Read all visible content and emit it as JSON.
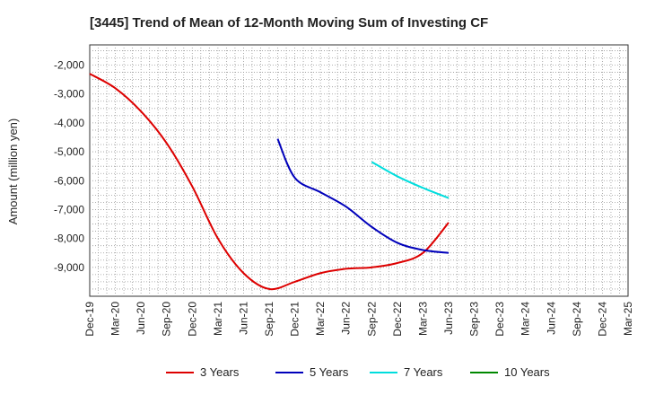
{
  "chart_data": {
    "type": "line",
    "title": "[3445]  Trend of Mean of 12-Month Moving Sum of Investing CF",
    "xlabel": "",
    "ylabel": "Amount (million yen)",
    "ylim": [
      -10000,
      -1300
    ],
    "yticks": [
      -9000,
      -8000,
      -7000,
      -6000,
      -5000,
      -4000,
      -3000,
      -2000
    ],
    "ytick_labels": [
      "-9,000",
      "-8,000",
      "-7,000",
      "-6,000",
      "-5,000",
      "-4,000",
      "-3,000",
      "-2,000"
    ],
    "xticks": [
      "Dec-19",
      "Mar-20",
      "Jun-20",
      "Sep-20",
      "Dec-20",
      "Mar-21",
      "Jun-21",
      "Sep-21",
      "Dec-21",
      "Mar-22",
      "Jun-22",
      "Sep-22",
      "Dec-22",
      "Mar-23",
      "Jun-23",
      "Sep-23",
      "Dec-23",
      "Mar-24",
      "Jun-24",
      "Sep-24",
      "Dec-24",
      "Mar-25"
    ],
    "grid": true,
    "legend_position": "bottom",
    "series": [
      {
        "name": "3 Years",
        "color": "#dd0000",
        "points": [
          [
            0,
            -2300
          ],
          [
            1,
            -2800
          ],
          [
            2,
            -3600
          ],
          [
            3,
            -4700
          ],
          [
            4,
            -6200
          ],
          [
            5,
            -8000
          ],
          [
            6,
            -9200
          ],
          [
            7,
            -9750
          ],
          [
            8,
            -9500
          ],
          [
            9,
            -9200
          ],
          [
            10,
            -9050
          ],
          [
            11,
            -9000
          ],
          [
            12,
            -8850
          ],
          [
            13,
            -8500
          ],
          [
            14,
            -7450
          ]
        ]
      },
      {
        "name": "5 Years",
        "color": "#0000bb",
        "points": [
          [
            7.33,
            -4550
          ],
          [
            8,
            -5900
          ],
          [
            9,
            -6400
          ],
          [
            10,
            -6900
          ],
          [
            11,
            -7600
          ],
          [
            12,
            -8150
          ],
          [
            13,
            -8400
          ],
          [
            14,
            -8500
          ]
        ]
      },
      {
        "name": "7 Years",
        "color": "#00dddd",
        "points": [
          [
            11,
            -5350
          ],
          [
            12,
            -5850
          ],
          [
            13,
            -6250
          ],
          [
            14,
            -6600
          ]
        ]
      },
      {
        "name": "10 Years",
        "color": "#008800",
        "points": []
      }
    ]
  }
}
